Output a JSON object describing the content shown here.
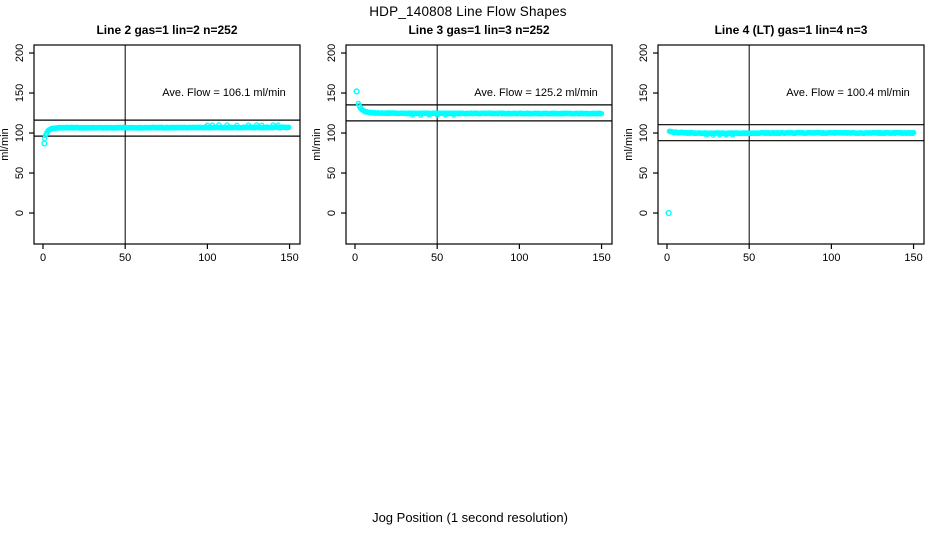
{
  "header": {
    "title": "HDP_140808  Line Flow Shapes"
  },
  "axes": {
    "xlabel": "Jog Position (1 second resolution)",
    "ylabel": "ml/min",
    "x_ticks": [
      0,
      50,
      100,
      150
    ],
    "y_ticks": [
      0,
      50,
      100,
      150,
      200
    ],
    "xlim": [
      -6,
      156
    ],
    "ylim": [
      -39,
      210
    ]
  },
  "colors": {
    "points": "#00ffff",
    "axis": "#000000",
    "background": "#ffffff",
    "text": "#000000"
  },
  "chart_data": [
    {
      "type": "scatter",
      "id": "line2",
      "title": "Line 2 gas=1 lin=2 n=252",
      "annotation": "Ave. Flow =  106.1  ml/min",
      "ave_flow": 106.1,
      "n": 252,
      "ref_line_x": 50,
      "ref_lines_y": [
        116.1,
        96.1
      ],
      "outliers": [
        [
          0.8,
          87
        ]
      ],
      "profile": [
        [
          1,
          93
        ],
        [
          1.6,
          97
        ],
        [
          2.2,
          100
        ],
        [
          3,
          102.5
        ],
        [
          4,
          104.5
        ],
        [
          5.5,
          105.8
        ],
        [
          8,
          106.4
        ],
        [
          15,
          106.6
        ],
        [
          60,
          106.6
        ],
        [
          100,
          106.8
        ],
        [
          150,
          107
        ]
      ],
      "extras": [
        [
          100,
          109.5
        ],
        [
          103,
          109.8
        ],
        [
          107,
          110
        ],
        [
          112,
          110
        ],
        [
          118,
          109.5
        ],
        [
          125,
          109.8
        ],
        [
          130,
          110
        ],
        [
          133,
          109.6
        ],
        [
          140,
          110
        ],
        [
          143,
          109.8
        ]
      ],
      "jitter": 0.8
    },
    {
      "type": "scatter",
      "id": "line3",
      "title": "Line 3 gas=1 lin=3 n=252",
      "annotation": "Ave. Flow =  125.2  ml/min",
      "ave_flow": 125.2,
      "n": 252,
      "ref_line_x": 50,
      "ref_lines_y": [
        135.2,
        115.2
      ],
      "outliers": [
        [
          1,
          152
        ]
      ],
      "profile": [
        [
          2,
          137
        ],
        [
          2.6,
          134
        ],
        [
          3.2,
          131.5
        ],
        [
          4,
          129.5
        ],
        [
          5,
          128
        ],
        [
          6.5,
          126.5
        ],
        [
          8,
          125.8
        ],
        [
          12,
          125
        ],
        [
          30,
          124.6
        ],
        [
          150,
          124.3
        ]
      ],
      "extras": [
        [
          35,
          122.5
        ],
        [
          40,
          122.3
        ],
        [
          45,
          122.6
        ],
        [
          50,
          122.4
        ],
        [
          55,
          122.6
        ],
        [
          60,
          122.4
        ]
      ],
      "jitter": 0.7
    },
    {
      "type": "scatter",
      "id": "line4",
      "title": "Line 4 (LT) gas=1 lin=4 n=3",
      "annotation": "Ave. Flow =  100.4  ml/min",
      "ave_flow": 100.4,
      "n": 3,
      "ref_line_x": 50,
      "ref_lines_y": [
        110.4,
        90.4
      ],
      "outliers": [
        [
          1,
          0
        ]
      ],
      "profile": [
        [
          1.5,
          101.8
        ],
        [
          3,
          101.3
        ],
        [
          6,
          100.7
        ],
        [
          12,
          100.2
        ],
        [
          25,
          99.7
        ],
        [
          45,
          99.8
        ],
        [
          90,
          100.1
        ],
        [
          150,
          100
        ]
      ],
      "extras": [
        [
          24,
          97.6
        ],
        [
          28,
          97.4
        ],
        [
          32,
          97.7
        ],
        [
          36,
          97.5
        ],
        [
          40,
          97.8
        ]
      ],
      "jitter": 0.9
    }
  ]
}
